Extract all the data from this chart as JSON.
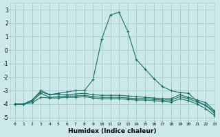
{
  "xlabel": "Humidex (Indice chaleur)",
  "xlim": [
    -0.5,
    23
  ],
  "ylim": [
    -5.2,
    3.5
  ],
  "yticks": [
    3,
    2,
    1,
    0,
    -1,
    -2,
    -3,
    -4,
    -5
  ],
  "xticks": [
    0,
    1,
    2,
    3,
    4,
    5,
    6,
    7,
    8,
    9,
    10,
    11,
    12,
    13,
    14,
    15,
    16,
    17,
    18,
    19,
    20,
    21,
    22,
    23
  ],
  "bg_color": "#cce8e8",
  "grid_color": "#a8d0d0",
  "line_color": "#1a6e64",
  "lines": [
    {
      "x": [
        0,
        1,
        2,
        3,
        4,
        5,
        6,
        7,
        8,
        9,
        10,
        11,
        12,
        13,
        14,
        15,
        16,
        17,
        18,
        19,
        20,
        21,
        22,
        23
      ],
      "y": [
        -4.0,
        -4.0,
        -3.7,
        -3.0,
        -3.3,
        -3.2,
        -3.1,
        -3.0,
        -3.0,
        -2.2,
        0.8,
        2.6,
        2.8,
        1.4,
        -0.7,
        -1.4,
        -2.1,
        -2.7,
        -3.0,
        -3.15,
        -3.2,
        -3.8,
        -4.1,
        -4.55
      ],
      "marker": "+"
    },
    {
      "x": [
        0,
        1,
        2,
        3,
        4,
        5,
        6,
        7,
        8,
        9,
        10,
        11,
        12,
        13,
        14,
        15,
        16,
        17,
        18,
        19,
        20,
        21,
        22,
        23
      ],
      "y": [
        -4.0,
        -4.0,
        -3.7,
        -3.1,
        -3.3,
        -3.3,
        -3.3,
        -3.25,
        -3.2,
        -3.3,
        -3.35,
        -3.35,
        -3.35,
        -3.4,
        -3.45,
        -3.5,
        -3.55,
        -3.6,
        -3.6,
        -3.3,
        -3.5,
        -3.7,
        -3.9,
        -4.5
      ],
      "marker": "+"
    },
    {
      "x": [
        0,
        1,
        2,
        3,
        4,
        5,
        6,
        7,
        8,
        9,
        10,
        11,
        12,
        13,
        14,
        15,
        16,
        17,
        18,
        19,
        20,
        21,
        22,
        23
      ],
      "y": [
        -4.0,
        -4.0,
        -3.8,
        -3.2,
        -3.5,
        -3.45,
        -3.4,
        -3.4,
        -3.35,
        -3.45,
        -3.5,
        -3.5,
        -3.5,
        -3.55,
        -3.6,
        -3.6,
        -3.65,
        -3.7,
        -3.7,
        -3.45,
        -3.6,
        -3.85,
        -4.1,
        -4.7
      ],
      "marker": "+"
    },
    {
      "x": [
        0,
        1,
        2,
        3,
        4,
        5,
        6,
        7,
        8,
        9,
        10,
        11,
        12,
        13,
        14,
        15,
        16,
        17,
        18,
        19,
        20,
        21,
        22,
        23
      ],
      "y": [
        -4.0,
        -4.0,
        -3.9,
        -3.5,
        -3.55,
        -3.55,
        -3.5,
        -3.5,
        -3.45,
        -3.55,
        -3.6,
        -3.6,
        -3.6,
        -3.65,
        -3.7,
        -3.7,
        -3.75,
        -3.8,
        -3.85,
        -3.6,
        -3.75,
        -4.0,
        -4.35,
        -4.85
      ],
      "marker": "+"
    }
  ]
}
